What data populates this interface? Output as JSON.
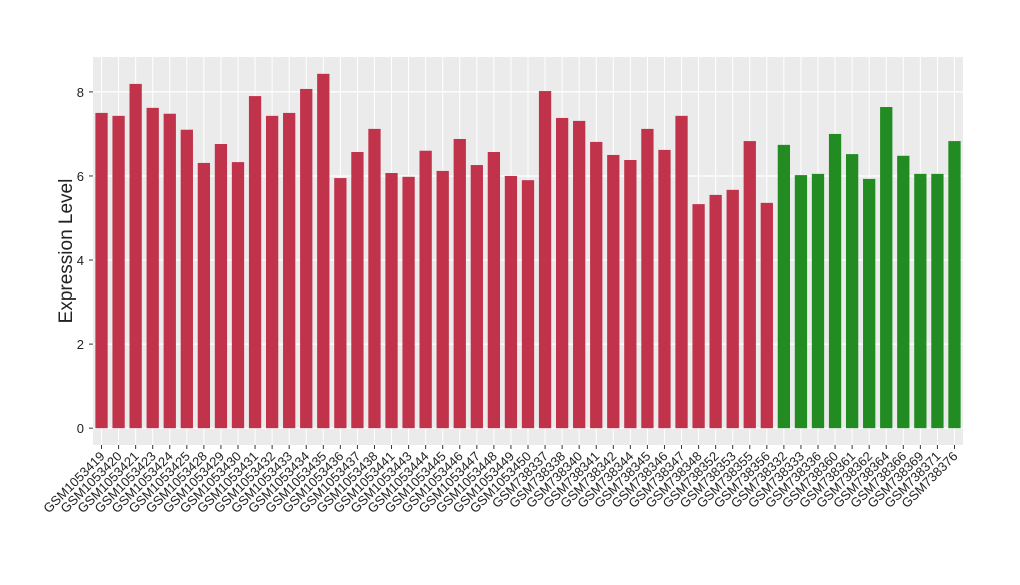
{
  "chart_data": {
    "type": "bar",
    "y_label": "Expression Level",
    "categories": [
      "GSM1053419",
      "GSM1053420",
      "GSM1053421",
      "GSM1053423",
      "GSM1053424",
      "GSM1053425",
      "GSM1053428",
      "GSM1053429",
      "GSM1053430",
      "GSM1053431",
      "GSM1053432",
      "GSM1053433",
      "GSM1053434",
      "GSM1053435",
      "GSM1053436",
      "GSM1053437",
      "GSM1053438",
      "GSM1053441",
      "GSM1053443",
      "GSM1053444",
      "GSM1053445",
      "GSM1053446",
      "GSM1053447",
      "GSM1053448",
      "GSM1053449",
      "GSM1053450",
      "GSM738337",
      "GSM738338",
      "GSM738340",
      "GSM738341",
      "GSM738342",
      "GSM738344",
      "GSM738345",
      "GSM738346",
      "GSM738347",
      "GSM738348",
      "GSM738352",
      "GSM738353",
      "GSM738355",
      "GSM738356",
      "GSM738332",
      "GSM738333",
      "GSM738336",
      "GSM738360",
      "GSM738361",
      "GSM738362",
      "GSM738364",
      "GSM738366",
      "GSM738369",
      "GSM738371",
      "GSM738376"
    ],
    "values": [
      7.5,
      7.43,
      8.19,
      7.62,
      7.48,
      7.1,
      6.31,
      6.76,
      6.33,
      7.9,
      7.43,
      7.5,
      8.07,
      8.43,
      5.95,
      6.57,
      7.12,
      6.07,
      5.98,
      6.6,
      6.12,
      6.88,
      6.26,
      6.57,
      6.0,
      5.9,
      8.02,
      7.38,
      7.31,
      6.81,
      6.5,
      6.38,
      7.12,
      6.62,
      7.43,
      5.33,
      5.55,
      5.67,
      6.83,
      5.36,
      6.74,
      6.02,
      6.05,
      7.0,
      6.52,
      5.93,
      7.64,
      6.48,
      6.05,
      6.05,
      6.83
    ],
    "colors": [
      "#c0334b",
      "#c0334b",
      "#c0334b",
      "#c0334b",
      "#c0334b",
      "#c0334b",
      "#c0334b",
      "#c0334b",
      "#c0334b",
      "#c0334b",
      "#c0334b",
      "#c0334b",
      "#c0334b",
      "#c0334b",
      "#c0334b",
      "#c0334b",
      "#c0334b",
      "#c0334b",
      "#c0334b",
      "#c0334b",
      "#c0334b",
      "#c0334b",
      "#c0334b",
      "#c0334b",
      "#c0334b",
      "#c0334b",
      "#c0334b",
      "#c0334b",
      "#c0334b",
      "#c0334b",
      "#c0334b",
      "#c0334b",
      "#c0334b",
      "#c0334b",
      "#c0334b",
      "#c0334b",
      "#c0334b",
      "#c0334b",
      "#c0334b",
      "#c0334b",
      "#228b22",
      "#228b22",
      "#228b22",
      "#228b22",
      "#228b22",
      "#228b22",
      "#228b22",
      "#228b22",
      "#228b22",
      "#228b22",
      "#228b22"
    ],
    "ylim": [
      -0.4,
      8.83
    ],
    "yticks": [
      0,
      2,
      4,
      6,
      8
    ],
    "grid": true
  }
}
